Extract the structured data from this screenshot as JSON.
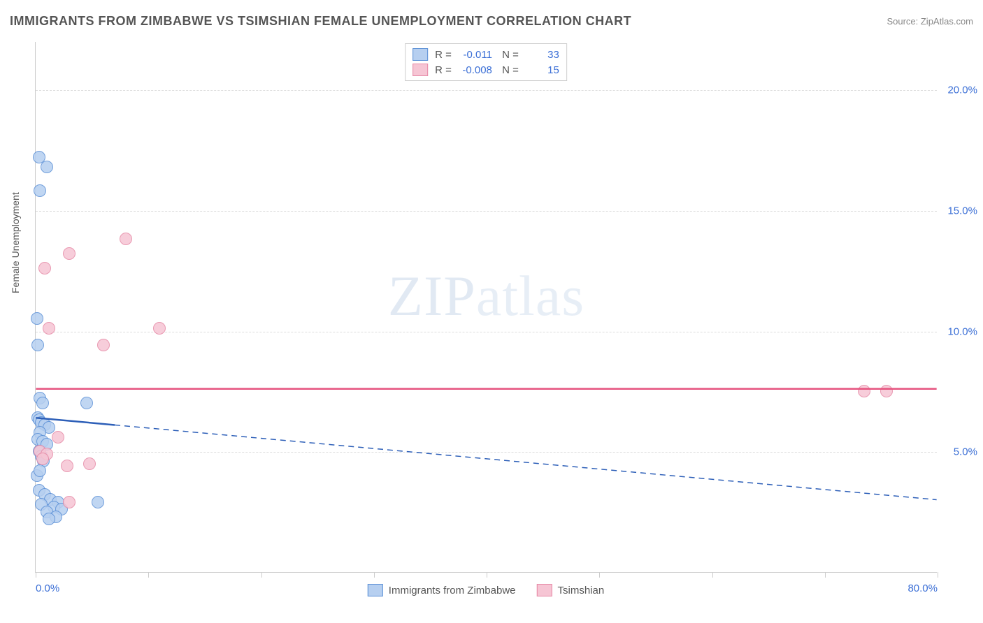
{
  "title": "IMMIGRANTS FROM ZIMBABWE VS TSIMSHIAN FEMALE UNEMPLOYMENT CORRELATION CHART",
  "source": "Source: ZipAtlas.com",
  "watermark": "ZIPatlas",
  "y_axis_label": "Female Unemployment",
  "chart": {
    "type": "scatter",
    "background_color": "#ffffff",
    "grid_color": "#dddddd",
    "axis_color": "#cccccc",
    "xlim": [
      0,
      80
    ],
    "ylim": [
      0,
      22
    ],
    "x_ticks": [
      0,
      10,
      20,
      30,
      40,
      50,
      60,
      70,
      80
    ],
    "x_tick_labels_shown": {
      "0": "0.0%",
      "80": "80.0%"
    },
    "y_ticks": [
      5,
      10,
      15,
      20
    ],
    "y_tick_labels": {
      "5": "5.0%",
      "10": "10.0%",
      "15": "15.0%",
      "20": "20.0%"
    },
    "point_radius": 9,
    "title_fontsize": 18,
    "label_fontsize": 14,
    "tick_fontsize": 15,
    "tick_color": "#3b6fd6"
  },
  "series": [
    {
      "name": "Immigrants from Zimbabwe",
      "fill_color": "#b6cff0",
      "stroke_color": "#5a8fd6",
      "line_color": "#2d5fb8",
      "R": "-0.011",
      "N": "33",
      "trend": {
        "x1": 0,
        "y1": 6.4,
        "x2": 80,
        "y2": 3.0,
        "solid_until_x": 7
      },
      "points": [
        {
          "x": 0.3,
          "y": 17.2
        },
        {
          "x": 1.0,
          "y": 16.8
        },
        {
          "x": 0.4,
          "y": 15.8
        },
        {
          "x": 0.1,
          "y": 10.5
        },
        {
          "x": 0.2,
          "y": 9.4
        },
        {
          "x": 0.4,
          "y": 7.2
        },
        {
          "x": 0.6,
          "y": 7.0
        },
        {
          "x": 4.5,
          "y": 7.0
        },
        {
          "x": 0.2,
          "y": 6.4
        },
        {
          "x": 0.3,
          "y": 6.3
        },
        {
          "x": 0.5,
          "y": 6.2
        },
        {
          "x": 0.8,
          "y": 6.1
        },
        {
          "x": 1.2,
          "y": 6.0
        },
        {
          "x": 0.4,
          "y": 5.8
        },
        {
          "x": 0.2,
          "y": 5.5
        },
        {
          "x": 0.6,
          "y": 5.4
        },
        {
          "x": 1.0,
          "y": 5.3
        },
        {
          "x": 0.3,
          "y": 5.0
        },
        {
          "x": 0.5,
          "y": 4.8
        },
        {
          "x": 0.7,
          "y": 4.6
        },
        {
          "x": 0.1,
          "y": 4.0
        },
        {
          "x": 0.4,
          "y": 4.2
        },
        {
          "x": 0.3,
          "y": 3.4
        },
        {
          "x": 0.8,
          "y": 3.2
        },
        {
          "x": 1.3,
          "y": 3.0
        },
        {
          "x": 2.0,
          "y": 2.9
        },
        {
          "x": 5.5,
          "y": 2.9
        },
        {
          "x": 0.5,
          "y": 2.8
        },
        {
          "x": 1.6,
          "y": 2.7
        },
        {
          "x": 2.3,
          "y": 2.6
        },
        {
          "x": 1.0,
          "y": 2.5
        },
        {
          "x": 1.8,
          "y": 2.3
        },
        {
          "x": 1.2,
          "y": 2.2
        }
      ]
    },
    {
      "name": "Tsimshian",
      "fill_color": "#f6c5d4",
      "stroke_color": "#e688a5",
      "line_color": "#e6537f",
      "R": "-0.008",
      "N": "15",
      "trend": {
        "x1": 0,
        "y1": 7.6,
        "x2": 80,
        "y2": 7.6,
        "solid_until_x": 80
      },
      "points": [
        {
          "x": 8.0,
          "y": 13.8
        },
        {
          "x": 3.0,
          "y": 13.2
        },
        {
          "x": 0.8,
          "y": 12.6
        },
        {
          "x": 1.2,
          "y": 10.1
        },
        {
          "x": 11.0,
          "y": 10.1
        },
        {
          "x": 6.0,
          "y": 9.4
        },
        {
          "x": 73.5,
          "y": 7.5
        },
        {
          "x": 75.5,
          "y": 7.5
        },
        {
          "x": 2.0,
          "y": 5.6
        },
        {
          "x": 0.4,
          "y": 5.0
        },
        {
          "x": 1.0,
          "y": 4.9
        },
        {
          "x": 2.8,
          "y": 4.4
        },
        {
          "x": 4.8,
          "y": 4.5
        },
        {
          "x": 0.6,
          "y": 4.7
        },
        {
          "x": 3.0,
          "y": 2.9
        }
      ]
    }
  ],
  "legend_bottom": [
    {
      "label": "Immigrants from Zimbabwe",
      "fill": "#b6cff0",
      "stroke": "#5a8fd6"
    },
    {
      "label": "Tsimshian",
      "fill": "#f6c5d4",
      "stroke": "#e688a5"
    }
  ]
}
